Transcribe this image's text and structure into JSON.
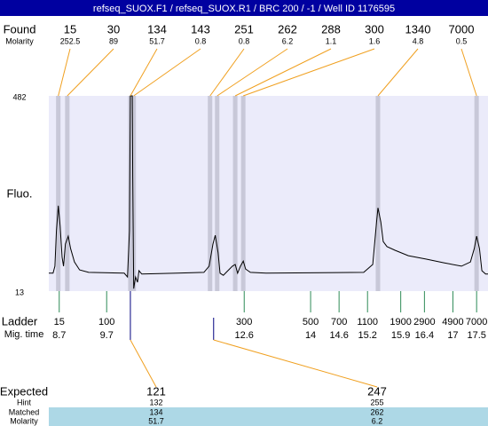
{
  "header": {
    "title": "refseq_SUOX.F1 / refseq_SUOX.R1 / BRC 200 / -1 / Well ID 1176595"
  },
  "found": {
    "label": "Found",
    "molarity_label": "Molarity",
    "sizes": [
      15,
      30,
      134,
      143,
      251,
      262,
      288,
      300,
      1340,
      7000
    ],
    "molarity": [
      252.5,
      89,
      51.7,
      0.8,
      0.8,
      6.2,
      1.1,
      1.6,
      4.8,
      0.5
    ]
  },
  "chart_data": {
    "type": "line",
    "y_label": "Fluo.",
    "color": "#000000",
    "xlim": [
      8.48,
      17.74
    ],
    "ylim": [
      13,
      482
    ],
    "yticks": [
      482,
      13
    ],
    "x": [
      8.48,
      8.57,
      8.61,
      8.64,
      8.68,
      8.72,
      8.76,
      8.79,
      8.83,
      8.89,
      8.94,
      9.02,
      9.13,
      9.32,
      10.07,
      10.14,
      10.18,
      10.2,
      10.24,
      10.25,
      10.27,
      10.31,
      10.35,
      10.38,
      10.44,
      11.19,
      11.75,
      11.86,
      11.94,
      11.99,
      12.05,
      12.09,
      12.16,
      12.35,
      12.41,
      12.46,
      12.52,
      12.58,
      12.63,
      12.73,
      13.06,
      15.12,
      15.31,
      15.39,
      15.42,
      15.48,
      15.53,
      15.61,
      15.78,
      16.06,
      16.43,
      16.81,
      17.18,
      17.37,
      17.45,
      17.5,
      17.56,
      17.61,
      17.69,
      17.74
    ],
    "values": [
      56,
      56,
      73,
      158,
      218,
      169,
      94,
      73,
      126,
      145,
      115,
      83,
      64,
      58,
      56,
      47,
      158,
      482,
      482,
      286,
      19,
      47,
      34,
      62,
      54,
      56,
      58,
      73,
      126,
      147,
      105,
      56,
      51,
      73,
      77,
      56,
      73,
      85,
      66,
      58,
      56,
      58,
      77,
      179,
      213,
      179,
      132,
      120,
      111,
      98,
      90,
      81,
      73,
      83,
      115,
      145,
      115,
      62,
      54,
      54
    ],
    "peak_times": [
      8.68,
      8.87,
      10.2,
      10.27,
      11.88,
      12.03,
      12.41,
      12.58,
      15.42,
      17.5
    ]
  },
  "ladder": {
    "label": "Ladder",
    "time_label": "Mig. time",
    "color": "#2e8b57",
    "sizes": [
      15,
      100,
      300,
      500,
      700,
      1100,
      1900,
      2900,
      4900,
      7000
    ],
    "times": [
      8.7,
      9.7,
      12.6,
      14,
      14.6,
      15.2,
      15.9,
      16.4,
      17,
      17.5
    ]
  },
  "expected": {
    "label": "Expected",
    "hint_label": "Hint",
    "matched_label": "Matched",
    "molarity_label": "Molarity",
    "items": [
      {
        "expected": 121,
        "hint": 132,
        "matched": 134,
        "molarity": 51.7
      },
      {
        "expected": 247,
        "hint": 255,
        "matched": 262,
        "molarity": 6.2
      }
    ]
  }
}
